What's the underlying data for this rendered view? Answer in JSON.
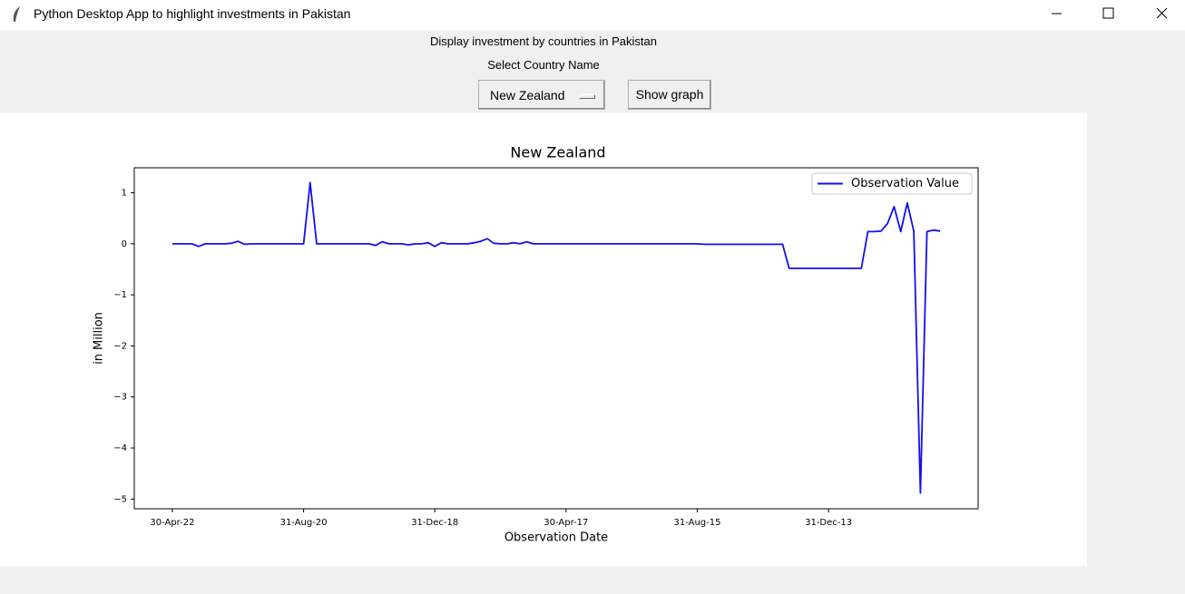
{
  "window": {
    "title": "Python Desktop App to highlight investments in Pakistan"
  },
  "header": {
    "heading": "Display investment by countries in Pakistan",
    "select_label": "Select Country Name"
  },
  "controls": {
    "dropdown": "New Zealand",
    "button": "Show graph"
  },
  "chart_data": {
    "type": "line",
    "title": "New Zealand",
    "x_label": "Observation Date",
    "y_label": "in Million",
    "categories": [
      "30-Apr-22",
      null,
      null,
      null,
      null,
      null,
      null,
      null,
      null,
      null,
      null,
      null,
      null,
      null,
      null,
      null,
      null,
      null,
      null,
      null,
      "31-Aug-20",
      null,
      null,
      null,
      null,
      null,
      null,
      null,
      null,
      null,
      null,
      null,
      null,
      null,
      null,
      null,
      null,
      null,
      null,
      null,
      "31-Dec-18",
      null,
      null,
      null,
      null,
      null,
      null,
      null,
      null,
      null,
      null,
      null,
      null,
      null,
      null,
      null,
      null,
      null,
      null,
      null,
      "30-Apr-17",
      null,
      null,
      null,
      null,
      null,
      null,
      null,
      null,
      null,
      null,
      null,
      null,
      null,
      null,
      null,
      null,
      null,
      null,
      null,
      "31-Aug-15",
      null,
      null,
      null,
      null,
      null,
      null,
      null,
      null,
      null,
      null,
      null,
      null,
      null,
      null,
      null,
      null,
      null,
      null,
      null,
      "31-Dec-13",
      null,
      null,
      null,
      null,
      null,
      null,
      null,
      null,
      null,
      null,
      null,
      null,
      null,
      null,
      null,
      null,
      null
    ],
    "series": [
      {
        "name": "Observation Value",
        "color": "#1010f0",
        "values": [
          0,
          0,
          0,
          0,
          -0.05,
          0,
          0,
          0,
          0,
          0.01,
          0.05,
          -0.01,
          0,
          0,
          0,
          0,
          0,
          0,
          0,
          0,
          0,
          1.2,
          0,
          0,
          0,
          0,
          0,
          0,
          0,
          0,
          0,
          -0.03,
          0.04,
          0,
          0,
          0,
          -0.02,
          0,
          0,
          0.02,
          -0.05,
          0.02,
          0,
          0,
          0,
          0,
          0.02,
          0.05,
          0.1,
          0.01,
          0,
          0,
          0.02,
          0,
          0.04,
          0,
          0,
          0,
          0,
          0,
          0,
          0,
          0,
          0,
          0,
          0,
          0,
          0,
          0,
          0,
          0,
          0,
          0,
          0,
          0,
          0,
          0,
          0,
          0,
          0,
          0,
          -0.01,
          -0.01,
          -0.01,
          -0.01,
          -0.01,
          -0.01,
          -0.01,
          -0.01,
          -0.01,
          -0.01,
          -0.01,
          -0.01,
          -0.01,
          -0.48,
          -0.48,
          -0.48,
          -0.48,
          -0.48,
          -0.48,
          -0.48,
          -0.48,
          -0.48,
          -0.48,
          -0.48,
          -0.48,
          0.24,
          0.24,
          0.25,
          0.4,
          0.73,
          0.24,
          0.8,
          0.25,
          -4.88,
          0.24,
          0.27,
          0.25
        ]
      }
    ],
    "xlim": [
      -5.8,
      122.8
    ],
    "ylim": [
      -5.19,
      1.49
    ],
    "yticks": [
      1,
      0,
      {
        "value": -1,
        "label": "−1"
      },
      {
        "value": -2,
        "label": "−2"
      },
      {
        "value": -3,
        "label": "−3"
      },
      {
        "value": -4,
        "label": "−4"
      },
      {
        "value": -5,
        "label": "−5"
      }
    ],
    "legend": "upper right",
    "grid": false
  }
}
